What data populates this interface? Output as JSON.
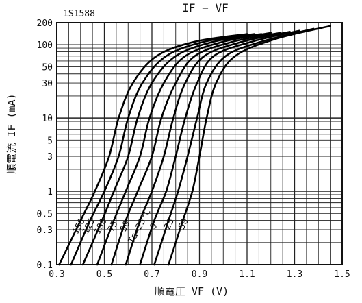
{
  "chart_data": {
    "type": "line",
    "part_number": "1S1588",
    "title": "IF − VF",
    "xlabel": "順電圧 VF (V)",
    "ylabel": "順電流 IF (mA)",
    "x_scale": "linear",
    "y_scale": "log",
    "xlim": [
      0.3,
      1.5
    ],
    "ylim": [
      0.1,
      200
    ],
    "x_ticks": [
      0.3,
      0.5,
      0.7,
      0.9,
      1.1,
      1.3,
      1.5
    ],
    "x_tick_labels": [
      "0.3",
      "0.5",
      "0.7",
      "0.9",
      "1.1",
      "1.3",
      "1.5"
    ],
    "y_ticks": [
      0.1,
      0.3,
      0.5,
      1,
      3,
      5,
      10,
      30,
      50,
      100,
      200
    ],
    "y_tick_labels": [
      "0.1",
      "0.3",
      "0.5",
      "1",
      "3",
      "5",
      "10",
      "30",
      "50",
      "100",
      "200"
    ],
    "grid": true,
    "series": [
      {
        "name": "150",
        "points": [
          [
            0.31,
            0.1
          ],
          [
            0.4,
            0.4
          ],
          [
            0.46,
            1
          ],
          [
            0.52,
            3
          ],
          [
            0.56,
            10
          ],
          [
            0.62,
            30
          ],
          [
            0.72,
            70
          ],
          [
            0.88,
            110
          ],
          [
            1.1,
            140
          ]
        ]
      },
      {
        "name": "125",
        "points": [
          [
            0.36,
            0.1
          ],
          [
            0.44,
            0.4
          ],
          [
            0.5,
            1
          ],
          [
            0.56,
            3
          ],
          [
            0.6,
            10
          ],
          [
            0.66,
            30
          ],
          [
            0.76,
            70
          ],
          [
            0.92,
            110
          ],
          [
            1.13,
            140
          ]
        ]
      },
      {
        "name": "100",
        "points": [
          [
            0.41,
            0.1
          ],
          [
            0.49,
            0.4
          ],
          [
            0.54,
            1
          ],
          [
            0.6,
            3
          ],
          [
            0.64,
            10
          ],
          [
            0.7,
            30
          ],
          [
            0.8,
            70
          ],
          [
            0.96,
            110
          ],
          [
            1.16,
            140
          ]
        ]
      },
      {
        "name": "75",
        "points": [
          [
            0.47,
            0.1
          ],
          [
            0.54,
            0.4
          ],
          [
            0.59,
            1
          ],
          [
            0.65,
            3
          ],
          [
            0.69,
            10
          ],
          [
            0.75,
            30
          ],
          [
            0.84,
            70
          ],
          [
            1.0,
            110
          ],
          [
            1.2,
            145
          ]
        ]
      },
      {
        "name": "50",
        "points": [
          [
            0.53,
            0.1
          ],
          [
            0.59,
            0.4
          ],
          [
            0.64,
            1
          ],
          [
            0.7,
            3
          ],
          [
            0.74,
            10
          ],
          [
            0.8,
            30
          ],
          [
            0.88,
            70
          ],
          [
            1.04,
            110
          ],
          [
            1.24,
            145
          ]
        ]
      },
      {
        "name": "Ta=25°C",
        "points": [
          [
            0.59,
            0.1
          ],
          [
            0.65,
            0.4
          ],
          [
            0.7,
            1
          ],
          [
            0.75,
            3
          ],
          [
            0.79,
            10
          ],
          [
            0.84,
            30
          ],
          [
            0.92,
            70
          ],
          [
            1.08,
            110
          ],
          [
            1.28,
            150
          ]
        ]
      },
      {
        "name": "0",
        "points": [
          [
            0.65,
            0.1
          ],
          [
            0.71,
            0.4
          ],
          [
            0.76,
            1
          ],
          [
            0.8,
            3
          ],
          [
            0.84,
            10
          ],
          [
            0.89,
            30
          ],
          [
            0.96,
            70
          ],
          [
            1.12,
            110
          ],
          [
            1.32,
            155
          ]
        ]
      },
      {
        "name": "−25",
        "points": [
          [
            0.71,
            0.1
          ],
          [
            0.77,
            0.4
          ],
          [
            0.81,
            1
          ],
          [
            0.85,
            3
          ],
          [
            0.89,
            10
          ],
          [
            0.93,
            30
          ],
          [
            1.01,
            70
          ],
          [
            1.16,
            110
          ],
          [
            1.38,
            165
          ]
        ]
      },
      {
        "name": "−50",
        "points": [
          [
            0.77,
            0.1
          ],
          [
            0.83,
            0.4
          ],
          [
            0.87,
            1
          ],
          [
            0.9,
            3
          ],
          [
            0.93,
            10
          ],
          [
            0.97,
            30
          ],
          [
            1.05,
            70
          ],
          [
            1.22,
            120
          ],
          [
            1.45,
            180
          ]
        ]
      }
    ]
  }
}
